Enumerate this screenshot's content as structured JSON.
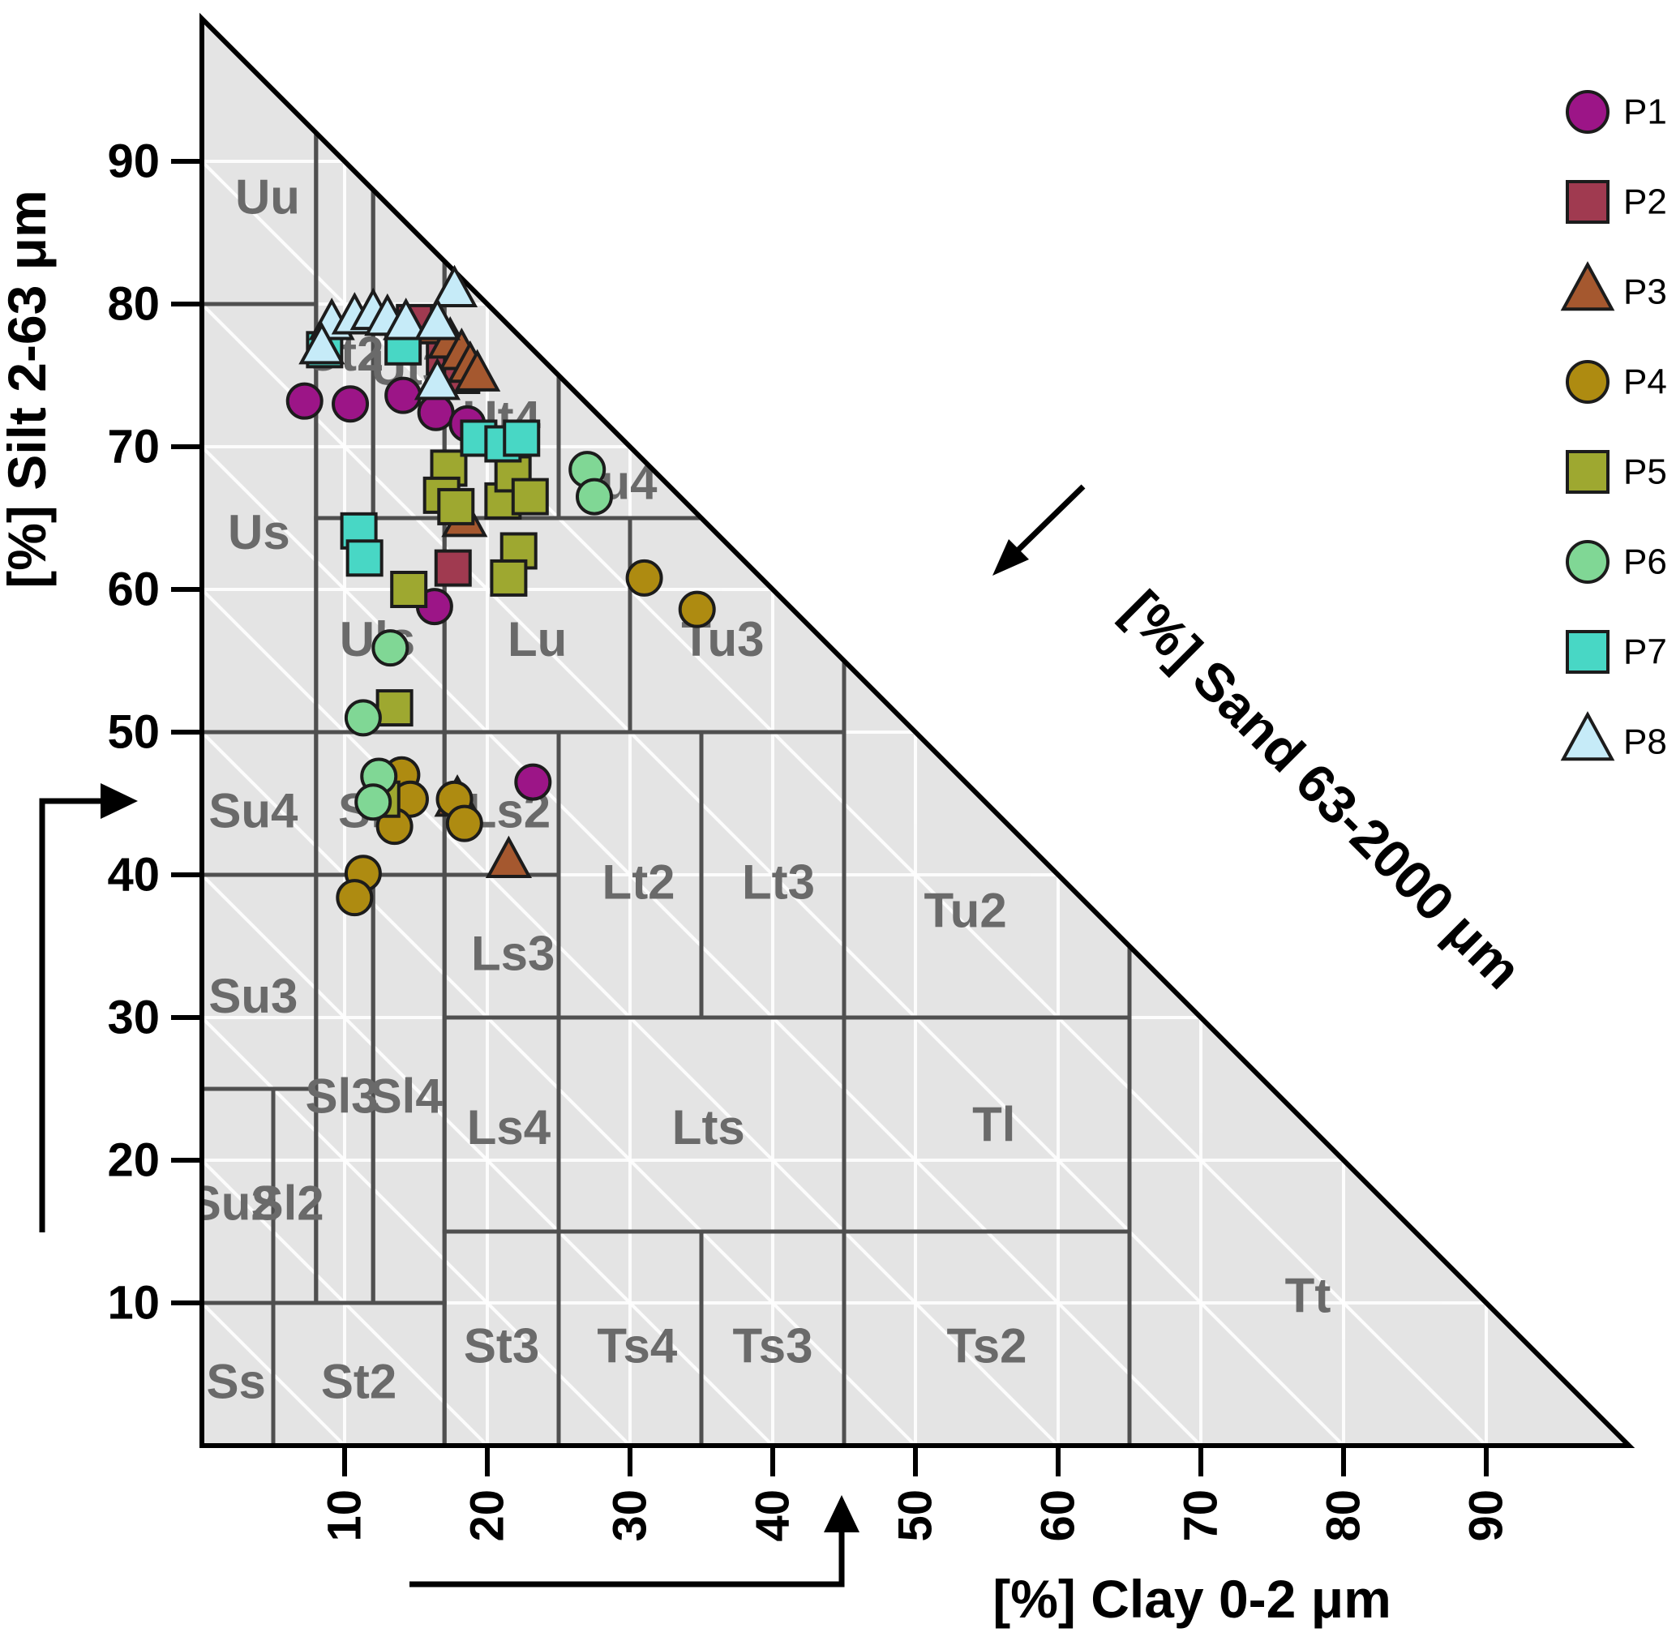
{
  "chart_data": {
    "type": "scatter",
    "variant": "ternary-soil-texture-triangle",
    "grid_step": 10,
    "axes": {
      "silt": {
        "label": "[%] Silt 2-63 μm",
        "min": 0,
        "max": 100,
        "ticks": [
          10,
          20,
          30,
          40,
          50,
          60,
          70,
          80,
          90
        ]
      },
      "clay": {
        "label": "[%] Clay 0-2 μm",
        "min": 0,
        "max": 100,
        "ticks": [
          10,
          20,
          30,
          40,
          50,
          60,
          70,
          80,
          90
        ]
      },
      "sand": {
        "label": "[%] Sand 63-2000 μm",
        "min": 0,
        "max": 100
      }
    },
    "style_colors": {
      "triangle_fill": "#e4e4e4",
      "grid": "#ffffff",
      "boundary": "#4f4f4f",
      "class_label": "#6a6a6a",
      "marker_edge": "#1c1c1c"
    },
    "regions": [
      {
        "name": "Uu",
        "clay": [
          0,
          8
        ],
        "silt": [
          80,
          100
        ],
        "label_at": [
          4.6,
          87.5
        ]
      },
      {
        "name": "Us",
        "clay": [
          0,
          8
        ],
        "silt": [
          50,
          80
        ],
        "label_at": [
          4,
          64
        ]
      },
      {
        "name": "Ut2",
        "clay": [
          8,
          12
        ],
        "silt": [
          65,
          92
        ],
        "label_at": [
          10,
          76.5
        ]
      },
      {
        "name": "Ut3",
        "clay": [
          12,
          17
        ],
        "silt": [
          65,
          88
        ],
        "label_at": [
          14.6,
          75.5
        ]
      },
      {
        "name": "Ut4",
        "clay": [
          17,
          25
        ],
        "silt": [
          65,
          83
        ],
        "label_at": [
          21,
          72
        ]
      },
      {
        "name": "Uls",
        "clay": [
          8,
          17
        ],
        "silt": [
          50,
          65
        ],
        "label_at": [
          12.3,
          56.5
        ]
      },
      {
        "name": "Lu",
        "clay": [
          17,
          30
        ],
        "silt": [
          50,
          65
        ],
        "label_at": [
          23.5,
          56.5
        ]
      },
      {
        "name": "Tu4",
        "clay": [
          25,
          35
        ],
        "silt": [
          65,
          75
        ],
        "label_at": [
          29,
          67.5
        ]
      },
      {
        "name": "Tu3",
        "clay": [
          30,
          45
        ],
        "silt": [
          50,
          65
        ],
        "label_at": [
          36.5,
          56.5
        ]
      },
      {
        "name": "Su4",
        "clay": [
          0,
          8
        ],
        "silt": [
          40,
          50
        ],
        "label_at": [
          3.6,
          44.5
        ]
      },
      {
        "name": "Slu",
        "clay": [
          8,
          17
        ],
        "silt": [
          40,
          50
        ],
        "label_at": [
          12.2,
          44.5
        ]
      },
      {
        "name": "Ls2",
        "clay": [
          17,
          25
        ],
        "silt": [
          40,
          50
        ],
        "label_at": [
          21.5,
          44.5
        ]
      },
      {
        "name": "Lt2",
        "clay": [
          25,
          35
        ],
        "silt": [
          30,
          50
        ],
        "label_at": [
          30.6,
          39.5
        ]
      },
      {
        "name": "Lt3",
        "clay": [
          35,
          45
        ],
        "silt": [
          30,
          50
        ],
        "label_at": [
          40.4,
          39.5
        ]
      },
      {
        "name": "Tu2",
        "clay": [
          45,
          65
        ],
        "silt": [
          30,
          55
        ],
        "label_at": [
          53.5,
          37.5
        ]
      },
      {
        "name": "Su3",
        "clay": [
          0,
          8
        ],
        "silt": [
          25,
          40
        ],
        "label_at": [
          3.6,
          31.5
        ]
      },
      {
        "name": "Ls3",
        "clay": [
          17,
          25
        ],
        "silt": [
          30,
          40
        ],
        "label_at": [
          21.8,
          34.5
        ]
      },
      {
        "name": "Sl3",
        "clay": [
          8,
          12
        ],
        "silt": [
          10,
          40
        ],
        "label_at": [
          9.8,
          24.5
        ]
      },
      {
        "name": "Sl4",
        "clay": [
          12,
          17
        ],
        "silt": [
          10,
          40
        ],
        "label_at": [
          14.3,
          24.5
        ]
      },
      {
        "name": "Ls4",
        "clay": [
          17,
          25
        ],
        "silt": [
          15,
          30
        ],
        "label_at": [
          21.5,
          22.3
        ]
      },
      {
        "name": "Lts",
        "clay": [
          25,
          45
        ],
        "silt": [
          15,
          30
        ],
        "label_at": [
          35.5,
          22.3
        ]
      },
      {
        "name": "Tl",
        "clay": [
          45,
          65
        ],
        "silt": [
          15,
          30
        ],
        "label_at": [
          55.5,
          22.5
        ]
      },
      {
        "name": "Su2",
        "clay": [
          0,
          5
        ],
        "silt": [
          10,
          25
        ],
        "label_at": [
          2.2,
          17
        ]
      },
      {
        "name": "Sl2",
        "clay": [
          5,
          8
        ],
        "silt": [
          10,
          25
        ],
        "label_at": [
          6,
          17
        ]
      },
      {
        "name": "Tt",
        "clay": [
          65,
          100
        ],
        "silt": [
          0,
          35
        ],
        "label_at": [
          77.5,
          10.5
        ]
      },
      {
        "name": "Ss",
        "clay": [
          0,
          5
        ],
        "silt": [
          0,
          10
        ],
        "label_at": [
          2.4,
          4.5
        ]
      },
      {
        "name": "St2",
        "clay": [
          5,
          17
        ],
        "silt": [
          0,
          10
        ],
        "label_at": [
          11,
          4.5
        ]
      },
      {
        "name": "St3",
        "clay": [
          17,
          25
        ],
        "silt": [
          0,
          15
        ],
        "label_at": [
          21,
          7
        ]
      },
      {
        "name": "Ts4",
        "clay": [
          25,
          35
        ],
        "silt": [
          0,
          15
        ],
        "label_at": [
          30.5,
          7
        ]
      },
      {
        "name": "Ts3",
        "clay": [
          35,
          45
        ],
        "silt": [
          0,
          15
        ],
        "label_at": [
          40,
          7
        ]
      },
      {
        "name": "Ts2",
        "clay": [
          45,
          65
        ],
        "silt": [
          0,
          15
        ],
        "label_at": [
          55,
          7
        ]
      }
    ],
    "series": [
      {
        "name": "P1",
        "marker": "circle",
        "color": "#9C1587",
        "points": [
          [
            7.2,
            73.2
          ],
          [
            10.4,
            73.0
          ],
          [
            14.1,
            73.6
          ],
          [
            16.4,
            72.4
          ],
          [
            18.6,
            71.6
          ],
          [
            16.3,
            58.8
          ],
          [
            23.2,
            46.5
          ]
        ]
      },
      {
        "name": "P2",
        "marker": "square",
        "color": "#A03A50",
        "points": [
          [
            14.9,
            78.7
          ],
          [
            17.0,
            76.3
          ],
          [
            18.2,
            75.0
          ],
          [
            17.6,
            61.5
          ]
        ]
      },
      {
        "name": "P3",
        "marker": "triangle",
        "color": "#A5582F",
        "points": [
          [
            16.5,
            78.3
          ],
          [
            17.4,
            77.3
          ],
          [
            18.2,
            76.5
          ],
          [
            18.8,
            75.6
          ],
          [
            19.3,
            75.0
          ],
          [
            18.4,
            64.8
          ],
          [
            17.9,
            45.2
          ],
          [
            21.5,
            40.9
          ]
        ]
      },
      {
        "name": "P4",
        "marker": "circle",
        "color": "#AE8B11",
        "points": [
          [
            31.0,
            60.8
          ],
          [
            34.7,
            58.6
          ],
          [
            14.0,
            47.0
          ],
          [
            14.6,
            45.3
          ],
          [
            13.5,
            43.4
          ],
          [
            17.7,
            45.3
          ],
          [
            18.4,
            43.6
          ],
          [
            11.3,
            40.1
          ],
          [
            10.7,
            38.4
          ]
        ]
      },
      {
        "name": "P5",
        "marker": "square",
        "color": "#9EA830",
        "points": [
          [
            17.3,
            68.5
          ],
          [
            16.8,
            66.6
          ],
          [
            17.8,
            65.8
          ],
          [
            21.1,
            66.2
          ],
          [
            21.8,
            68.1
          ],
          [
            23.0,
            66.5
          ],
          [
            22.2,
            62.7
          ],
          [
            21.5,
            60.8
          ],
          [
            14.5,
            60.0
          ],
          [
            13.5,
            51.7
          ],
          [
            12.6,
            45.3
          ]
        ]
      },
      {
        "name": "P6",
        "marker": "circle",
        "color": "#80D795",
        "points": [
          [
            27.0,
            68.4
          ],
          [
            27.5,
            66.5
          ],
          [
            13.2,
            55.9
          ],
          [
            11.3,
            51.0
          ],
          [
            12.4,
            46.9
          ],
          [
            12.0,
            45.1
          ]
        ]
      },
      {
        "name": "P7",
        "marker": "square",
        "color": "#48D7C5",
        "points": [
          [
            8.6,
            76.8
          ],
          [
            14.1,
            77.0
          ],
          [
            19.4,
            70.6
          ],
          [
            21.1,
            70.2
          ],
          [
            22.4,
            70.6
          ],
          [
            11.0,
            64.1
          ],
          [
            11.4,
            62.2
          ]
        ]
      },
      {
        "name": "P8",
        "marker": "triangle",
        "color": "#C6EBF8",
        "points": [
          [
            17.7,
            80.9
          ],
          [
            9.1,
            78.6
          ],
          [
            10.7,
            79.0
          ],
          [
            12.0,
            79.3
          ],
          [
            13.0,
            78.9
          ],
          [
            14.3,
            78.6
          ],
          [
            8.4,
            76.9
          ],
          [
            16.5,
            78.6
          ],
          [
            16.5,
            74.4
          ]
        ]
      }
    ],
    "legend": {
      "position": "top-right",
      "items": [
        "P1",
        "P2",
        "P3",
        "P4",
        "P5",
        "P6",
        "P7",
        "P8"
      ]
    }
  }
}
